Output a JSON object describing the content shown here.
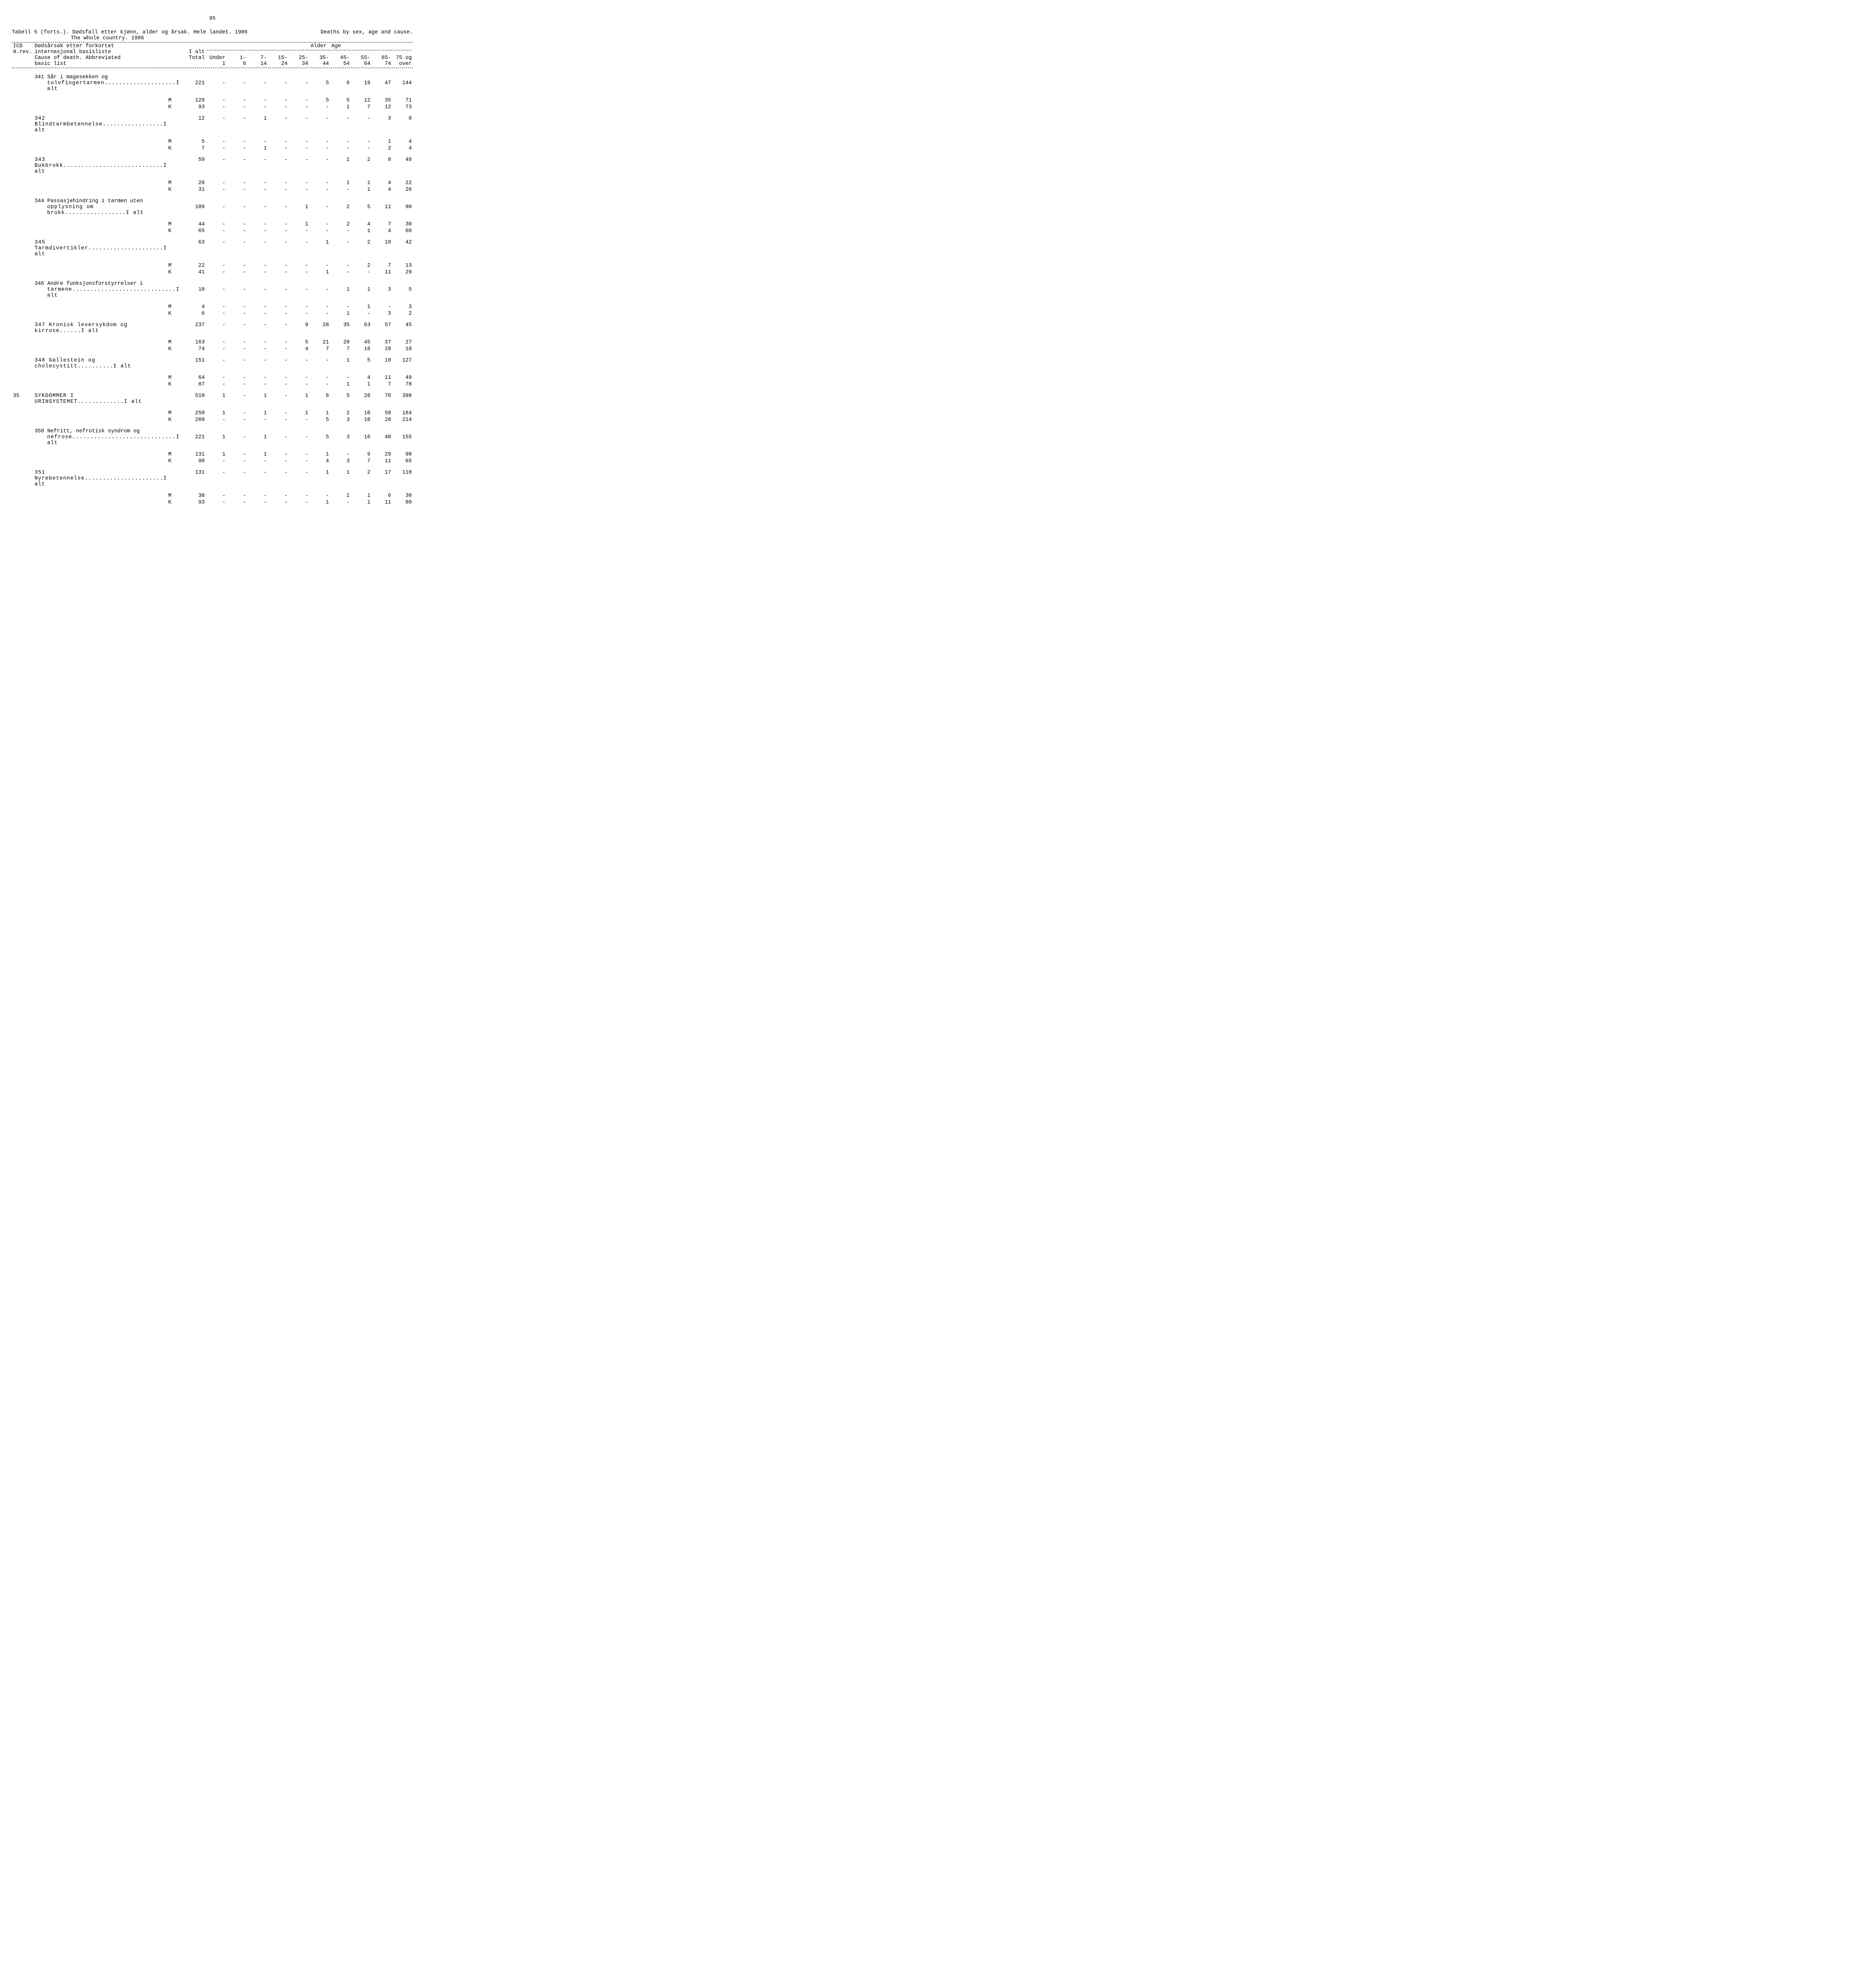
{
  "page_number": "95",
  "title_left": "Tabell 5 (forts.). Dødsfall etter kjønn, alder og årsak. Hele landet. 1986",
  "title_left_2": "The whole country. 1986",
  "title_right": "Deaths by sex, age and  cause.",
  "header": {
    "icd_line1": "ICD",
    "icd_line2": "9.rev.",
    "cause_no_line1": "Dødsårsak etter forkortet",
    "cause_no_line2": "internasjonal basisliste",
    "cause_en_line1": "Cause of death. Abbreviated",
    "cause_en_line2": "basic list",
    "total_no": "I alt",
    "total_en": "Total",
    "age_no": "Alder",
    "age_en": "Age",
    "cols_line1": [
      "Under",
      "1-",
      "7-",
      "15-",
      "25-",
      "35-",
      "45-",
      "55-",
      "65-",
      "75 og"
    ],
    "cols_line2": [
      "1",
      "6",
      "14",
      "24",
      "34",
      "44",
      "54",
      "64",
      "74",
      "over"
    ]
  },
  "rows": [
    {
      "code": "341",
      "cause_lines": [
        "Sår i magesekken og",
        "tolvfingertarmen....................I alt"
      ],
      "ialt": [
        "221",
        "-",
        "-",
        "-",
        "-",
        "-",
        "5",
        "6",
        "19",
        "47",
        "144"
      ],
      "m": [
        "128",
        "-",
        "-",
        "-",
        "-",
        "-",
        "5",
        "5",
        "12",
        "35",
        "71"
      ],
      "k": [
        "93",
        "-",
        "-",
        "-",
        "-",
        "-",
        "-",
        "1",
        "7",
        "12",
        "73"
      ]
    },
    {
      "code": "342",
      "cause_lines": [
        "Blindtarmbetennelse.................I alt"
      ],
      "ialt": [
        "12",
        "-",
        "-",
        "1",
        "-",
        "-",
        "-",
        "-",
        "-",
        "3",
        "8"
      ],
      "m": [
        "5",
        "-",
        "-",
        "-",
        "-",
        "-",
        "-",
        "-",
        "-",
        "1",
        "4"
      ],
      "k": [
        "7",
        "-",
        "-",
        "1",
        "-",
        "-",
        "-",
        "-",
        "-",
        "2",
        "4"
      ]
    },
    {
      "code": "343",
      "cause_lines": [
        "Bukbrokk............................I alt"
      ],
      "ialt": [
        "59",
        "-",
        "-",
        "-",
        "-",
        "-",
        "-",
        "1",
        "2",
        "8",
        "48"
      ],
      "m": [
        "28",
        "-",
        "-",
        "-",
        "-",
        "-",
        "-",
        "1",
        "1",
        "4",
        "22"
      ],
      "k": [
        "31",
        "-",
        "-",
        "-",
        "-",
        "-",
        "-",
        "-",
        "1",
        "4",
        "26"
      ]
    },
    {
      "code": "344",
      "cause_lines": [
        "Passasjehindring i tarmen uten",
        "opplysning om brokk.................I alt"
      ],
      "ialt": [
        "109",
        "-",
        "-",
        "-",
        "-",
        "1",
        "-",
        "2",
        "5",
        "11",
        "90"
      ],
      "m": [
        "44",
        "-",
        "-",
        "-",
        "-",
        "1",
        "-",
        "2",
        "4",
        "7",
        "30"
      ],
      "k": [
        "65",
        "-",
        "-",
        "-",
        "-",
        "-",
        "-",
        "-",
        "1",
        "4",
        "60"
      ]
    },
    {
      "code": "345",
      "cause_lines": [
        "Tarmdivertikler.....................I alt"
      ],
      "ialt": [
        "63",
        "-",
        "-",
        "-",
        "-",
        "-",
        "1",
        "-",
        "2",
        "18",
        "42"
      ],
      "m": [
        "22",
        "-",
        "-",
        "-",
        "-",
        "-",
        "-",
        "-",
        "2",
        "7",
        "13"
      ],
      "k": [
        "41",
        "-",
        "-",
        "-",
        "-",
        "-",
        "1",
        "-",
        "-",
        "11",
        "29"
      ]
    },
    {
      "code": "346",
      "cause_lines": [
        "Andre funksjonsforstyrrelser i",
        "tarmene.............................I alt"
      ],
      "ialt": [
        "10",
        "-",
        "-",
        "-",
        "-",
        "-",
        "-",
        "1",
        "1",
        "3",
        "5"
      ],
      "m": [
        "4",
        "-",
        "-",
        "-",
        "-",
        "-",
        "-",
        "-",
        "1",
        "-",
        "3"
      ],
      "k": [
        "6",
        "-",
        "-",
        "-",
        "-",
        "-",
        "-",
        "1",
        "-",
        "3",
        "2"
      ]
    },
    {
      "code": "347",
      "cause_lines": [
        "Kronisk leversykdom og kirrose......I alt"
      ],
      "ialt": [
        "237",
        "-",
        "-",
        "-",
        "-",
        "9",
        "28",
        "35",
        "63",
        "57",
        "45"
      ],
      "m": [
        "163",
        "-",
        "-",
        "-",
        "-",
        "5",
        "21",
        "28",
        "45",
        "37",
        "27"
      ],
      "k": [
        "74",
        "-",
        "-",
        "-",
        "-",
        "4",
        "7",
        "7",
        "18",
        "20",
        "18"
      ]
    },
    {
      "code": "348",
      "cause_lines": [
        "Gallestein og cholecystitt..........I alt"
      ],
      "ialt": [
        "151",
        "-",
        "-",
        "-",
        "-",
        "-",
        "-",
        "1",
        "5",
        "18",
        "127"
      ],
      "m": [
        "64",
        "-",
        "-",
        "-",
        "-",
        "-",
        "-",
        "-",
        "4",
        "11",
        "49"
      ],
      "k": [
        "87",
        "-",
        "-",
        "-",
        "-",
        "-",
        "-",
        "1",
        "1",
        "7",
        "78"
      ]
    },
    {
      "code": "35",
      "major": true,
      "cause_lines": [
        "SYKDOMMER I URINSYSTEMET.............I alt"
      ],
      "ialt": [
        "510",
        "1",
        "-",
        "1",
        "-",
        "1",
        "6",
        "5",
        "20",
        "78",
        "398"
      ],
      "m": [
        "250",
        "1",
        "-",
        "1",
        "-",
        "1",
        "1",
        "2",
        "10",
        "50",
        "184"
      ],
      "k": [
        "260",
        "-",
        "-",
        "-",
        "-",
        "-",
        "5",
        "3",
        "10",
        "28",
        "214"
      ]
    },
    {
      "code": "350",
      "cause_lines": [
        "Nefritt, nefrotisk syndrom og",
        "nefrose.............................I alt"
      ],
      "ialt": [
        "221",
        "1",
        "-",
        "1",
        "-",
        "-",
        "5",
        "3",
        "16",
        "40",
        "155"
      ],
      "m": [
        "131",
        "1",
        "-",
        "1",
        "-",
        "-",
        "1",
        "-",
        "9",
        "29",
        "90"
      ],
      "k": [
        "90",
        "-",
        "-",
        "-",
        "-",
        "-",
        "4",
        "3",
        "7",
        "11",
        "65"
      ]
    },
    {
      "code": "351",
      "cause_lines": [
        "Nyrebetennelse......................I alt"
      ],
      "ialt": [
        "131",
        "-",
        "-",
        "-",
        "-",
        "-",
        "1",
        "1",
        "2",
        "17",
        "110"
      ],
      "m": [
        "38",
        "-",
        "-",
        "-",
        "-",
        "-",
        "-",
        "1",
        "1",
        "6",
        "30"
      ],
      "k": [
        "93",
        "-",
        "-",
        "-",
        "-",
        "-",
        "1",
        "-",
        "1",
        "11",
        "80"
      ]
    }
  ],
  "sex_labels": {
    "m": "M",
    "k": "K"
  }
}
